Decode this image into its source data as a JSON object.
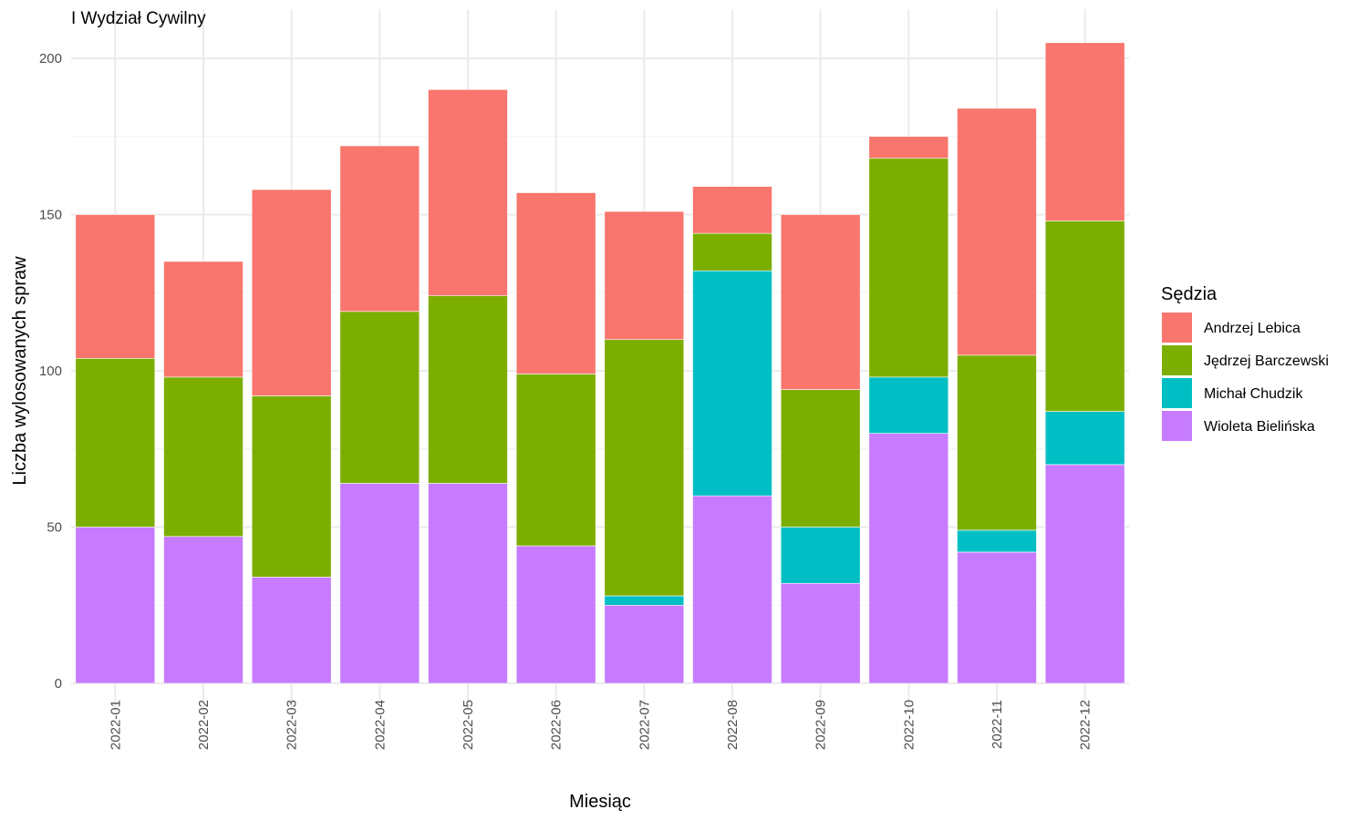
{
  "chart_data": {
    "type": "bar",
    "stacked": true,
    "title": "I Wydział Cywilny",
    "xlabel": "Miesiąc",
    "ylabel": "Liczba wylosowanych spraw",
    "ylim": [
      0,
      205
    ],
    "yticks": [
      0,
      50,
      100,
      150,
      200
    ],
    "grid": true,
    "legend_title": "Sędzia",
    "legend_position": "right",
    "categories": [
      "2022-01",
      "2022-02",
      "2022-03",
      "2022-04",
      "2022-05",
      "2022-06",
      "2022-07",
      "2022-08",
      "2022-09",
      "2022-10",
      "2022-11",
      "2022-12"
    ],
    "series": [
      {
        "name": "Wioleta Bielińska",
        "color": "#C77CFF",
        "values": [
          50,
          47,
          34,
          64,
          64,
          44,
          25,
          60,
          32,
          80,
          42,
          70
        ]
      },
      {
        "name": "Michał Chudzik",
        "color": "#00BFC4",
        "values": [
          0,
          0,
          0,
          0,
          0,
          0,
          3,
          72,
          18,
          18,
          7,
          17
        ]
      },
      {
        "name": "Jędrzej Barczewski",
        "color": "#7CAE00",
        "values": [
          54,
          51,
          58,
          55,
          60,
          55,
          82,
          12,
          44,
          70,
          56,
          61
        ]
      },
      {
        "name": "Andrzej Lebica",
        "color": "#F8766D",
        "values": [
          46,
          37,
          66,
          53,
          66,
          58,
          41,
          15,
          56,
          7,
          79,
          57
        ]
      }
    ],
    "legend_order": [
      "Andrzej Lebica",
      "Jędrzej Barczewski",
      "Michał Chudzik",
      "Wioleta Bielińska"
    ]
  }
}
